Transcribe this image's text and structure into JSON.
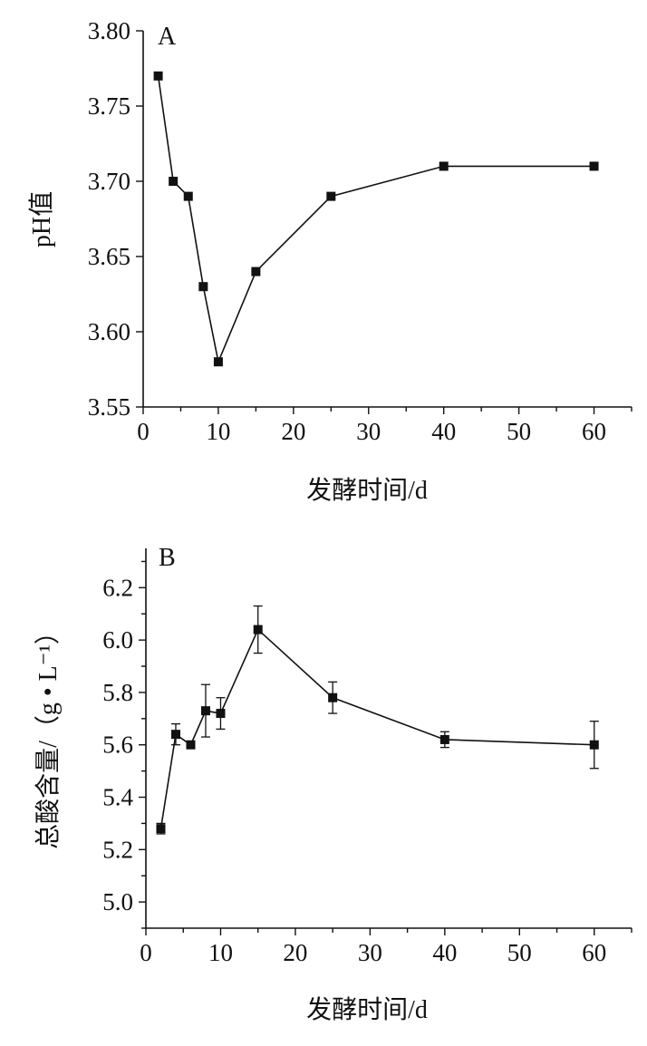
{
  "chart_data": [
    {
      "type": "line",
      "panel_label": "A",
      "xlabel": "发酵时间/d",
      "ylabel": "pH值",
      "xlim": [
        0,
        65
      ],
      "ylim": [
        3.55,
        3.8
      ],
      "x_ticks": [
        0,
        10,
        20,
        30,
        40,
        50,
        60
      ],
      "y_ticks": [
        3.55,
        3.6,
        3.65,
        3.7,
        3.75,
        3.8
      ],
      "y_tick_labels": [
        "3.55",
        "3.60",
        "3.65",
        "3.70",
        "3.75",
        "3.80"
      ],
      "grid": false,
      "marker": "square",
      "x": [
        2,
        4,
        6,
        8,
        10,
        15,
        25,
        40,
        60
      ],
      "series": [
        {
          "values": [
            3.77,
            3.7,
            3.69,
            3.63,
            3.58,
            3.64,
            3.69,
            3.71,
            3.71
          ]
        }
      ]
    },
    {
      "type": "line",
      "panel_label": "B",
      "xlabel": "发酵时间/d",
      "ylabel": "总酸含量/（g • L⁻¹）",
      "xlim": [
        0,
        65
      ],
      "ylim": [
        4.9,
        6.35
      ],
      "x_ticks": [
        0,
        10,
        20,
        30,
        40,
        50,
        60
      ],
      "y_ticks": [
        5.0,
        5.2,
        5.4,
        5.6,
        5.8,
        6.0,
        6.2
      ],
      "y_tick_labels": [
        "5.0",
        "5.2",
        "5.4",
        "5.6",
        "5.8",
        "6.0",
        "6.2"
      ],
      "grid": false,
      "marker": "square",
      "x": [
        2,
        4,
        6,
        8,
        10,
        15,
        25,
        40,
        60
      ],
      "series": [
        {
          "values": [
            5.28,
            5.64,
            5.6,
            5.73,
            5.72,
            6.04,
            5.78,
            5.62,
            5.6
          ],
          "error": [
            0.02,
            0.04,
            0.01,
            0.1,
            0.06,
            0.09,
            0.06,
            0.03,
            0.09
          ]
        }
      ]
    }
  ]
}
